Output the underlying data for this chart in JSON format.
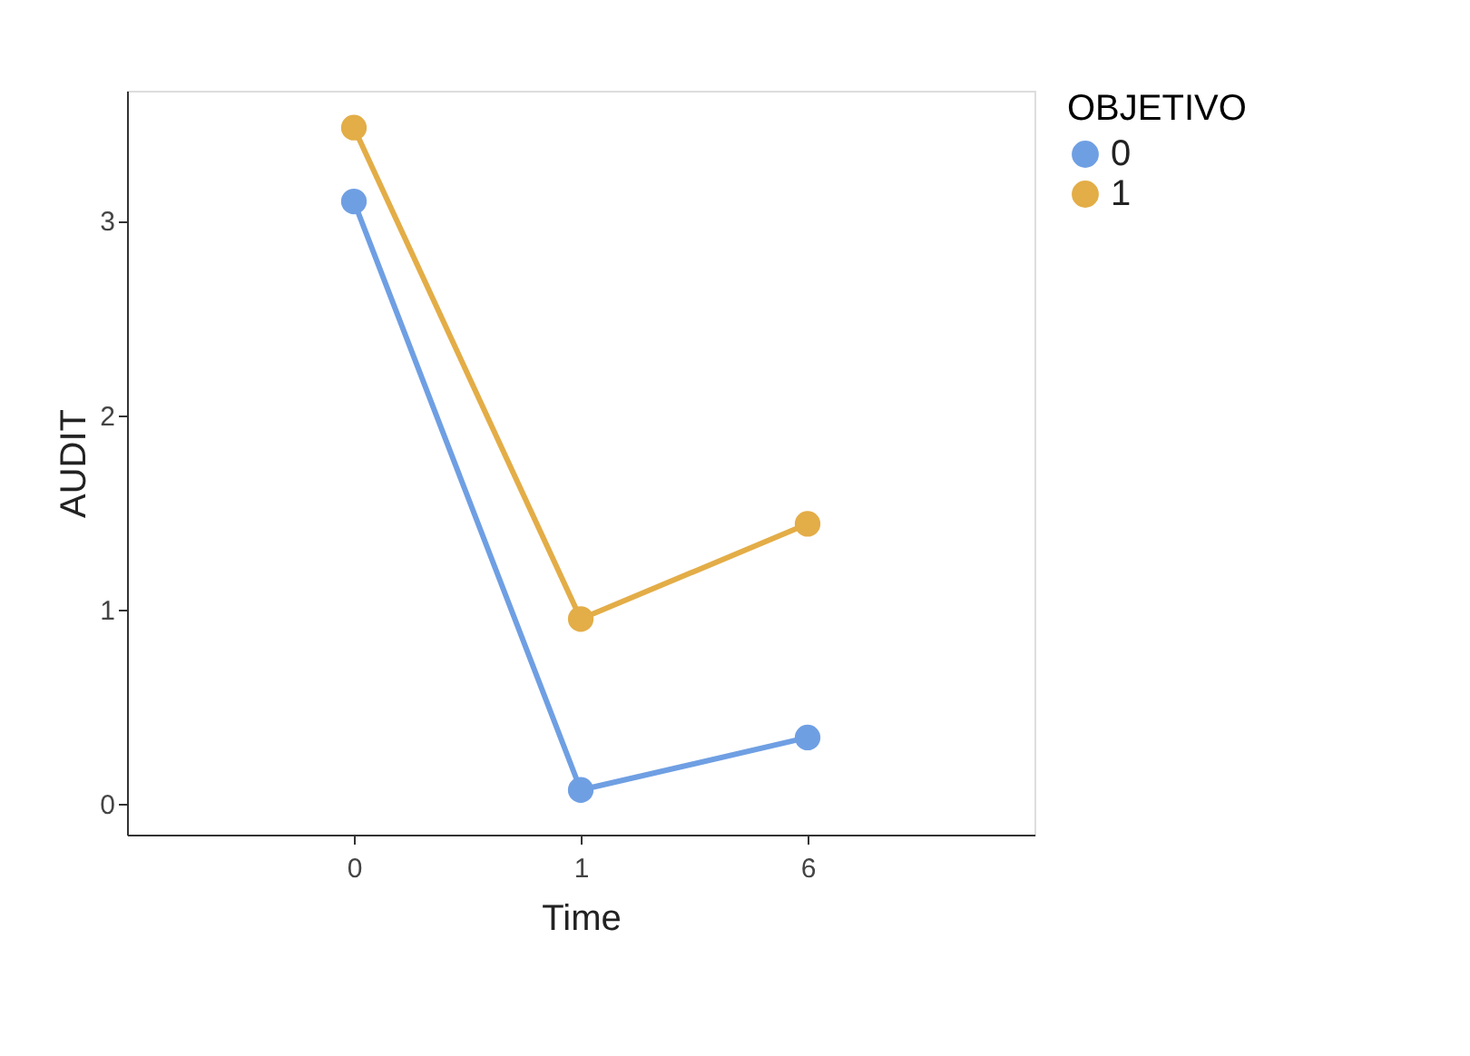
{
  "chart_data": {
    "type": "line",
    "xlabel": "Time",
    "ylabel": "AUDIT",
    "legend_title": "OBJETIVO",
    "categories": [
      "0",
      "1",
      "6"
    ],
    "series": [
      {
        "name": "0",
        "color": "#6f9fe3",
        "values": [
          3.1,
          0.07,
          0.34
        ]
      },
      {
        "name": "1",
        "color": "#e3ad47",
        "values": [
          3.48,
          0.95,
          1.44
        ]
      }
    ],
    "ylim": [
      -0.16,
      3.67
    ],
    "yticks": [
      0,
      1,
      2,
      3
    ],
    "grid": false,
    "legend": "right",
    "marker": "circle",
    "line_style": "solid"
  }
}
